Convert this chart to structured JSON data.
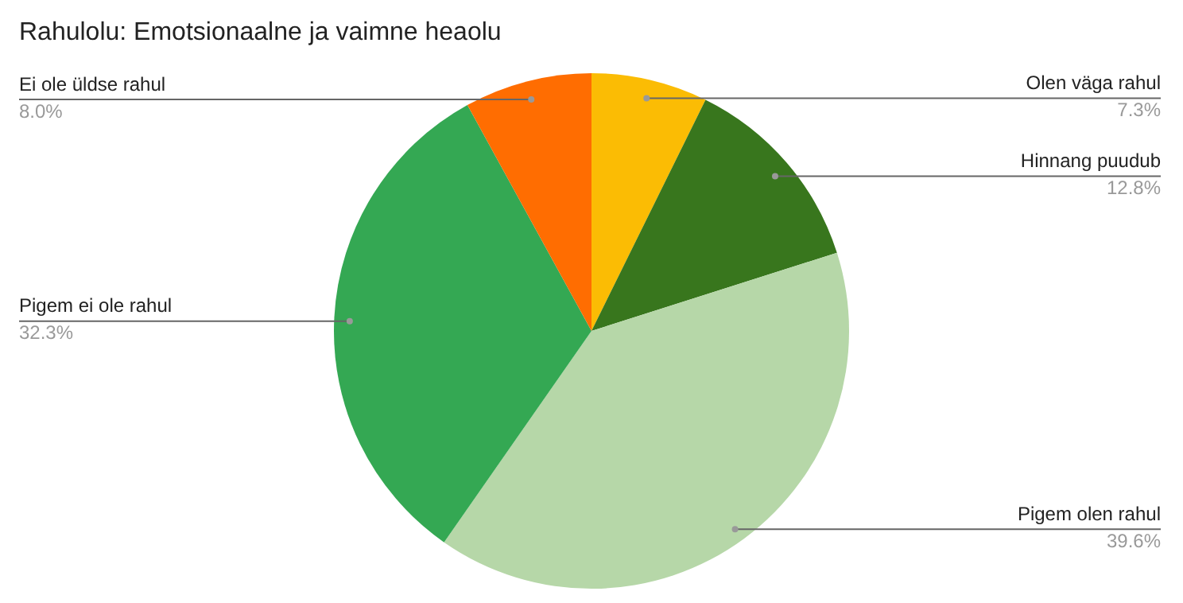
{
  "chart_data": {
    "type": "pie",
    "title": "Rahulolu: Emotsionaalne ja vaimne heaolu",
    "categories": [
      "Olen väga rahul",
      "Hinnang puudub",
      "Pigem olen rahul",
      "Pigem ei ole rahul",
      "Ei ole üldse rahul"
    ],
    "values": [
      7.3,
      12.8,
      39.6,
      32.3,
      8.0
    ],
    "value_labels": [
      "7.3%",
      "12.8%",
      "39.6%",
      "32.3%",
      "8.0%"
    ],
    "colors": [
      "#fbbc04",
      "#38761d",
      "#b6d7a8",
      "#34a853",
      "#ff6d01"
    ],
    "legend": false
  }
}
